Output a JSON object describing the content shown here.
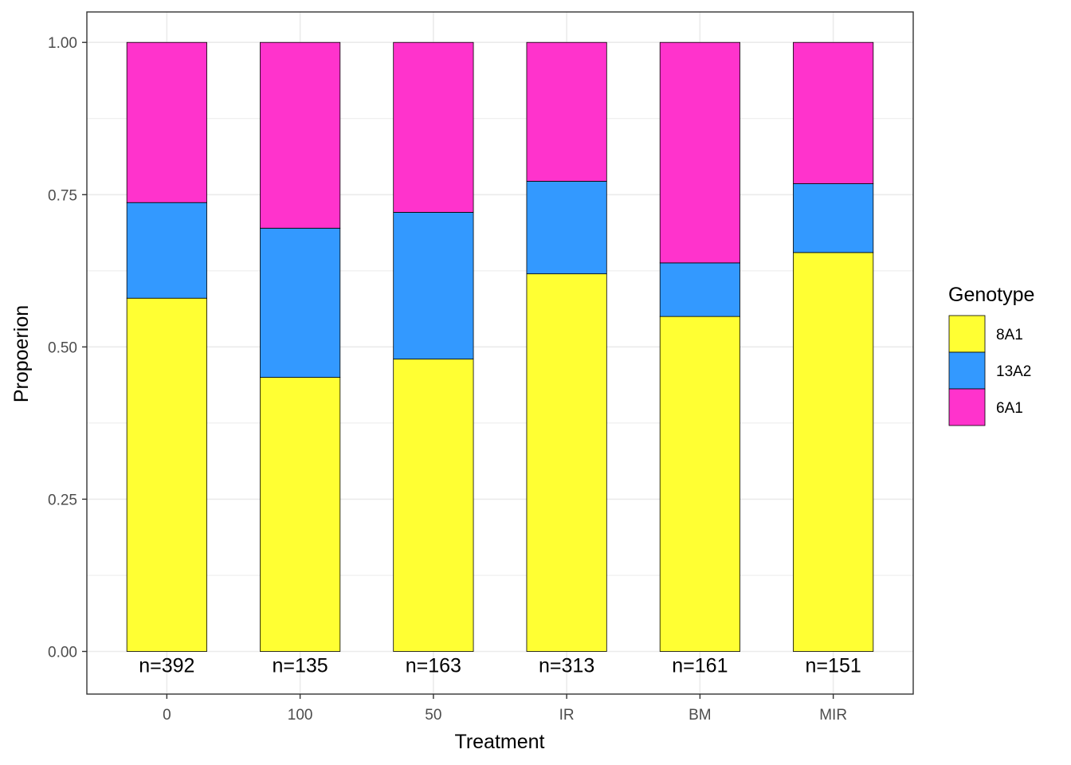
{
  "chart_data": {
    "type": "bar",
    "stacked": true,
    "categories": [
      "0",
      "100",
      "50",
      "IR",
      "BM",
      "MIR"
    ],
    "series": [
      {
        "name": "8A1",
        "color": "#FFFF33",
        "values": [
          0.58,
          0.45,
          0.48,
          0.62,
          0.55,
          0.655
        ]
      },
      {
        "name": "13A2",
        "color": "#3399FF",
        "values": [
          0.157,
          0.245,
          0.241,
          0.152,
          0.088,
          0.113
        ]
      },
      {
        "name": "6A1",
        "color": "#FF33CC",
        "values": [
          0.263,
          0.305,
          0.279,
          0.228,
          0.362,
          0.232
        ]
      }
    ],
    "n_labels": [
      "n=392",
      "n=135",
      "n=163",
      "n=313",
      "n=161",
      "n=151"
    ],
    "xlabel": "Treatment",
    "ylabel": "Propoerion",
    "ylim": [
      -0.07,
      1.05
    ],
    "yticks": [
      0,
      0.25,
      0.5,
      0.75,
      1.0
    ],
    "ytick_labels": [
      "0.00",
      "0.25",
      "0.50",
      "0.75",
      "1.00"
    ],
    "grid": true,
    "legend": {
      "title": "Genotype",
      "position": "right",
      "order": [
        "8A1",
        "13A2",
        "6A1"
      ]
    }
  }
}
